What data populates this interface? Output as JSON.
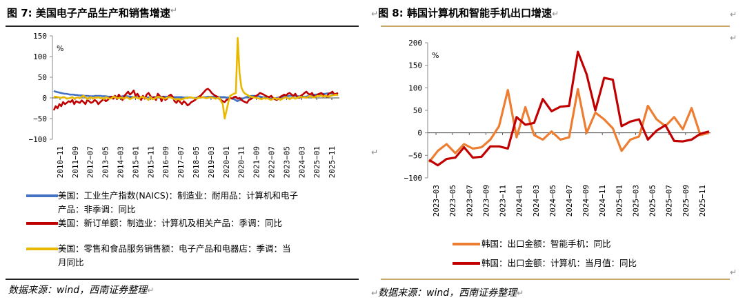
{
  "page_mark": "↵",
  "left": {
    "title": "图 7:  美国电子产品生产和销售增速",
    "source": "数据来源：wind，西南证券整理",
    "chart_data": {
      "type": "line",
      "title": "图 7:  美国电子产品生产和销售增速",
      "unit": "%",
      "ylim": [
        -100,
        150
      ],
      "yticks": [
        "150",
        "100",
        "50",
        "0",
        "−50",
        "−100"
      ],
      "xticks": [
        "2010−11",
        "2011−09",
        "2012−07",
        "2013−05",
        "2014−03",
        "2015−01",
        "2015−11",
        "2016−09",
        "2017−07",
        "2018−05",
        "2019−03",
        "2020−01",
        "2020−11",
        "2021−09",
        "2022−07",
        "2023−05",
        "2024−03",
        "2025−01",
        "2025−11"
      ],
      "legend": [
        {
          "name": "美国：工业生产指数(NAICS)：制造业：耐用品：计算机和电子产品：非季调：同比",
          "lines": [
            "美国：工业生产指数(NAICS)：制造业：耐用品：计算机和电子",
            "产品：非季调：同比"
          ],
          "color": "#4472c4"
        },
        {
          "name": "美国：新订单额：制造业：计算机及相关产品：季调：同比",
          "lines": [
            "美国：新订单额：制造业：计算机及相关产品：季调：同比"
          ],
          "color": "#c00000"
        },
        {
          "name": "美国：零售和食品服务销售额：电子产品和电器店：季调：当月同比",
          "lines": [
            "美国：零售和食品服务销售额：电子产品和电器店：季调：当",
            "月同比"
          ],
          "color": "#e8b800"
        }
      ],
      "series": [
        {
          "name": "美国：工业生产指数(NAICS)：制造业：耐用品：计算机和电子产品：非季调：同比",
          "color": "#4472c4",
          "x_start": "2010-11",
          "values": [
            17,
            15,
            14,
            13,
            12,
            11,
            10,
            10,
            9,
            8,
            8,
            8,
            7,
            7,
            6,
            6,
            6,
            5,
            5,
            5,
            4,
            4,
            4,
            5,
            5,
            5,
            5,
            4,
            4,
            4,
            3,
            3,
            3,
            3,
            3,
            3,
            3,
            3,
            4,
            4,
            4,
            4,
            3,
            3,
            2,
            2,
            2,
            2,
            2,
            2,
            1,
            1,
            1,
            1,
            1,
            2,
            2,
            2,
            2,
            3,
            3,
            3,
            3,
            3,
            3,
            3,
            2,
            2,
            2,
            2,
            2,
            2,
            1,
            1,
            1,
            1,
            1,
            0,
            0,
            0,
            1,
            1,
            1,
            2,
            2,
            2,
            3,
            3,
            3,
            3,
            3,
            3,
            2,
            2,
            2,
            2,
            1,
            1,
            0,
            -1,
            -3,
            -5,
            -8,
            -6,
            -4,
            -2,
            0,
            2,
            3,
            4,
            5,
            5,
            5,
            4,
            4,
            3,
            2,
            1,
            0,
            -1,
            -1,
            -2,
            -2,
            -1,
            0,
            1,
            2,
            3,
            3,
            4,
            4,
            5,
            5,
            5,
            5,
            4,
            4,
            4,
            3,
            3,
            3,
            4,
            5,
            6,
            7,
            8,
            8,
            9,
            9,
            10,
            10,
            10,
            11,
            11,
            11,
            10,
            10,
            9,
            9
          ]
        },
        {
          "name": "美国：新订单额：制造业：计算机及相关产品：季调：同比",
          "color": "#c00000",
          "x_start": "2010-11",
          "values": [
            -30,
            -20,
            -25,
            -15,
            -20,
            -10,
            -15,
            -12,
            -8,
            -10,
            -5,
            -15,
            -8,
            -10,
            -12,
            -6,
            -10,
            -15,
            -5,
            -8,
            -12,
            -10,
            -5,
            -8,
            -15,
            -10,
            -6,
            -3,
            -8,
            -5,
            0,
            3,
            -2,
            5,
            -3,
            8,
            2,
            -5,
            5,
            10,
            15,
            8,
            12,
            18,
            5,
            10,
            3,
            -5,
            5,
            -2,
            8,
            12,
            5,
            -3,
            2,
            -5,
            10,
            5,
            -8,
            3,
            -5,
            -2,
            5,
            8,
            3,
            -8,
            -12,
            -5,
            -10,
            -15,
            -8,
            -12,
            -18,
            -15,
            -10,
            -8,
            -5,
            -2,
            3,
            5,
            10,
            15,
            20,
            22,
            18,
            12,
            8,
            5,
            3,
            -2,
            -5,
            -8,
            -10,
            -5,
            -3,
            0,
            -2,
            2,
            3,
            -2,
            0,
            -5,
            -8,
            -10,
            -12,
            -5,
            -3,
            0,
            3,
            5,
            8,
            12,
            10,
            8,
            5,
            3,
            2,
            5,
            0,
            -3,
            -5,
            -2,
            3,
            5,
            8,
            6,
            10,
            12,
            8,
            5,
            10,
            3,
            0,
            5,
            8,
            12,
            15,
            10,
            8,
            12,
            5,
            3,
            8,
            10,
            12,
            8,
            5,
            3,
            10,
            12,
            15,
            8,
            10,
            12
          ]
        },
        {
          "name": "美国：零售和食品服务销售额：电子产品和电器店：季调：当月同比",
          "color": "#e8b800",
          "x_start": "2010-11",
          "values": [
            2,
            3,
            2,
            1,
            0,
            2,
            1,
            -2,
            -1,
            0,
            2,
            -2,
            0,
            1,
            -1,
            3,
            5,
            2,
            -3,
            0,
            2,
            -2,
            1,
            0,
            2,
            -1,
            0,
            -3,
            2,
            0,
            -2,
            -1,
            3,
            2,
            0,
            -1,
            1,
            0,
            -2,
            2,
            0,
            -3,
            -1,
            2,
            1,
            0,
            -2,
            3,
            2,
            0,
            -1,
            -5,
            2,
            -3,
            -2,
            0,
            3,
            2,
            1,
            -1,
            -2,
            0,
            2,
            1,
            -1,
            -3,
            -4,
            -2,
            -5,
            -3,
            -2,
            0,
            -1,
            2,
            1,
            0,
            -1,
            -2,
            1,
            0,
            2,
            1,
            -1,
            0,
            2,
            1,
            0,
            -2,
            -1,
            1,
            -8,
            -15,
            -50,
            -30,
            -10,
            5,
            8,
            10,
            12,
            145,
            60,
            25,
            15,
            10,
            8,
            5,
            3,
            2,
            1,
            0,
            -1,
            -2,
            -3,
            0,
            -2,
            -1,
            -3,
            -5,
            -2,
            0,
            -3,
            -1,
            -5,
            -2,
            0,
            2,
            -1,
            -3,
            0,
            1,
            -2,
            0,
            2,
            3,
            1,
            2,
            0,
            3,
            5,
            2,
            1,
            3,
            5,
            4,
            6,
            3,
            5,
            4,
            3,
            5,
            6,
            7,
            8,
            6
          ]
        }
      ]
    }
  },
  "right": {
    "title": "图 8:  韩国计算机和智能手机出口增速",
    "source": "数据来源：wind，西南证券整理",
    "chart_data": {
      "type": "line",
      "title": "图 8:  韩国计算机和智能手机出口增速",
      "unit": "%",
      "ylim": [
        -100,
        200
      ],
      "yticks": [
        "200",
        "150",
        "100",
        "50",
        "0",
        "−50",
        "−100"
      ],
      "xticks": [
        "2023−03",
        "2023−05",
        "2023−07",
        "2023−09",
        "2023−11",
        "2024−01",
        "2024−03",
        "2024−05",
        "2024−07",
        "2024−09",
        "2024−11",
        "2025−01",
        "2025−03",
        "2025−05",
        "2025−07",
        "2025−09",
        "2025−11"
      ],
      "legend": [
        {
          "name": "韩国：出口金额：智能手机：同比",
          "color": "#ed7d31"
        },
        {
          "name": "韩国：出口金额：计算机：当月值：同比",
          "color": "#c00000"
        }
      ],
      "series": [
        {
          "name": "韩国：出口金额：智能手机：同比",
          "color": "#ed7d31",
          "x_start": "2023-03",
          "x": [
            "2023-03",
            "2023-04",
            "2023-05",
            "2023-06",
            "2023-07",
            "2023-08",
            "2023-09",
            "2023-10",
            "2023-11",
            "2023-12",
            "2024-01",
            "2024-02",
            "2024-03",
            "2024-04",
            "2024-05",
            "2024-06",
            "2024-07",
            "2024-08",
            "2024-09",
            "2024-10",
            "2024-11",
            "2024-12",
            "2025-01",
            "2025-02",
            "2025-03",
            "2025-04",
            "2025-05",
            "2025-06",
            "2025-07",
            "2025-08",
            "2025-09",
            "2025-10",
            "2025-11"
          ],
          "values": [
            -65,
            -40,
            -25,
            -45,
            -25,
            -35,
            -32,
            -15,
            15,
            95,
            -10,
            57,
            -5,
            -15,
            3,
            -15,
            -10,
            97,
            0,
            45,
            30,
            10,
            -40,
            -15,
            -8,
            60,
            30,
            15,
            35,
            8,
            55,
            -5,
            0
          ]
        },
        {
          "name": "韩国：出口金额：计算机：当月值：同比",
          "color": "#c00000",
          "x_start": "2023-03",
          "x": [
            "2023-03",
            "2023-04",
            "2023-05",
            "2023-06",
            "2023-07",
            "2023-08",
            "2023-09",
            "2023-10",
            "2023-11",
            "2023-12",
            "2024-01",
            "2024-02",
            "2024-03",
            "2024-04",
            "2024-05",
            "2024-06",
            "2024-07",
            "2024-08",
            "2024-09",
            "2024-10",
            "2024-11",
            "2024-12",
            "2025-01",
            "2025-02",
            "2025-03",
            "2025-04",
            "2025-05",
            "2025-06",
            "2025-07",
            "2025-08",
            "2025-09",
            "2025-10",
            "2025-11"
          ],
          "values": [
            -60,
            -72,
            -58,
            -55,
            -32,
            -55,
            -53,
            -30,
            -30,
            -35,
            35,
            18,
            22,
            75,
            48,
            58,
            60,
            180,
            130,
            50,
            122,
            118,
            15,
            25,
            30,
            -15,
            5,
            17,
            -18,
            -19,
            -15,
            -2,
            3
          ]
        }
      ]
    }
  }
}
